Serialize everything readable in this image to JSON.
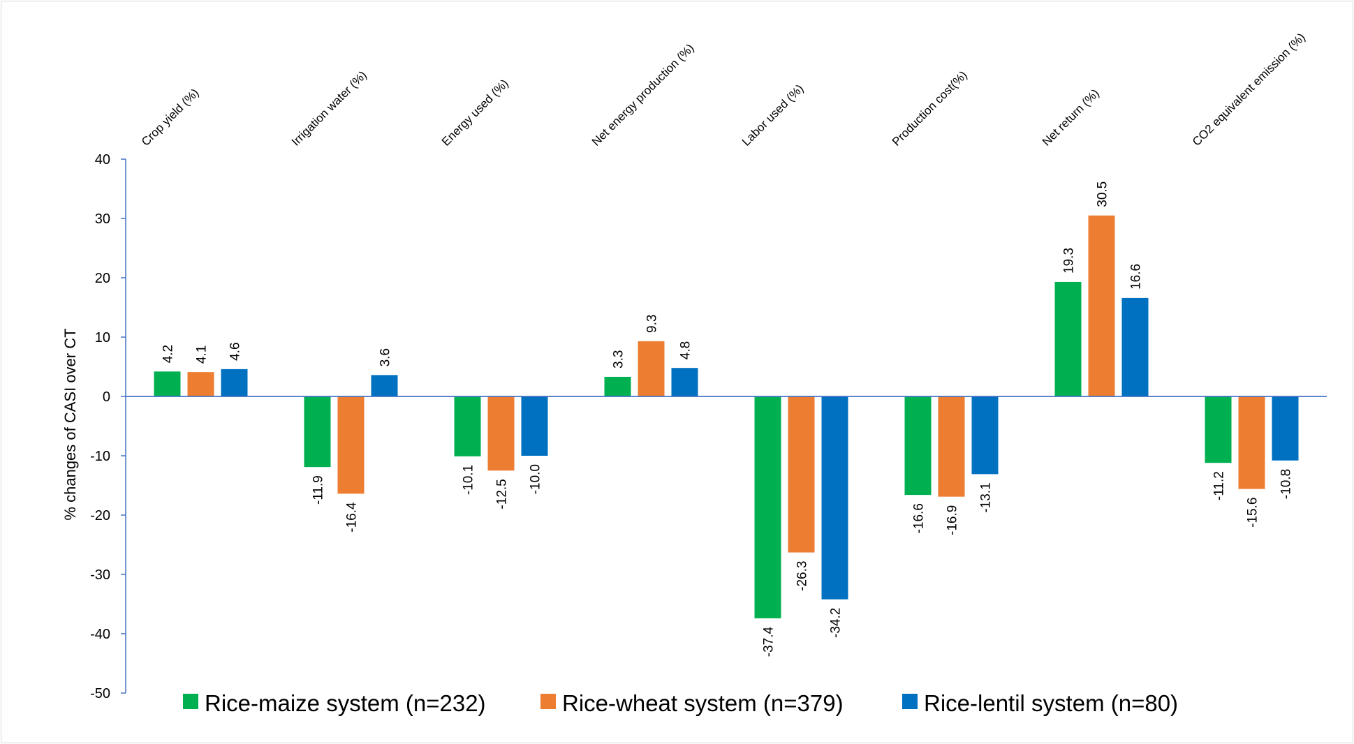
{
  "chart_data": {
    "type": "bar",
    "title": "",
    "xlabel": "",
    "ylabel": "% changes of CASI over CT",
    "ylim": [
      -50,
      40
    ],
    "yticks": [
      40,
      30,
      20,
      10,
      0,
      -10,
      -20,
      -30,
      -40,
      -50
    ],
    "grid": false,
    "legend_position": "bottom",
    "category_labels_position": "top",
    "categories": [
      "Crop yield (%)",
      "Irrigation water (%)",
      "Energy used (%)",
      "Net energy production (%)",
      "Labor used (%)",
      "Production cost(%)",
      "Net return (%)",
      "CO2 equivalent emission (%)"
    ],
    "series": [
      {
        "name": "Rice-maize system (n=232)",
        "color": "#00b050",
        "values": [
          4.2,
          -11.9,
          -10.1,
          3.3,
          -37.4,
          -16.6,
          19.3,
          -11.2
        ],
        "labels": [
          "4.2",
          "-11.9",
          "-10.1",
          "3.3",
          "-37.4",
          "-16.6",
          "19.3",
          "-11.2"
        ]
      },
      {
        "name": "Rice-wheat system (n=379)",
        "color": "#ed7d31",
        "values": [
          4.1,
          -16.4,
          -12.5,
          9.3,
          -26.3,
          -16.9,
          30.5,
          -15.6
        ],
        "labels": [
          "4.1",
          "-16.4",
          "-12.5",
          "9.3",
          "-26.3",
          "-16.9",
          "30.5",
          "-15.6"
        ]
      },
      {
        "name": "Rice-lentil system (n=80)",
        "color": "#0070c0",
        "values": [
          4.6,
          3.6,
          -10.0,
          4.8,
          -34.2,
          -13.1,
          16.6,
          -10.8
        ],
        "labels": [
          "4.6",
          "3.6",
          "-10.0",
          "4.8",
          "-34.2",
          "-13.1",
          "16.6",
          "-10.8"
        ]
      }
    ],
    "axis_color": "#4472c4"
  }
}
